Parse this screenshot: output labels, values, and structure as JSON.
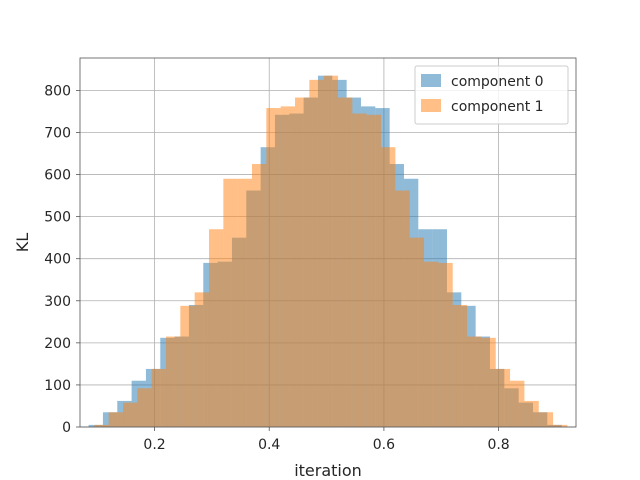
{
  "chart_data": {
    "type": "bar",
    "title": "",
    "xlabel": "iteration",
    "ylabel": "KL",
    "xlim": [
      0.07,
      0.935
    ],
    "ylim": [
      0,
      877
    ],
    "xticks": [
      0.2,
      0.4,
      0.6,
      0.8
    ],
    "yticks": [
      0,
      100,
      200,
      300,
      400,
      500,
      600,
      700,
      800
    ],
    "grid": true,
    "legend_position": "top-right",
    "series": [
      {
        "name": "component 0",
        "color": "#1f77b4",
        "opacity": 0.5,
        "bins": [
          {
            "x0": 0.085,
            "x1": 0.11,
            "v": 5
          },
          {
            "x0": 0.11,
            "x1": 0.135,
            "v": 35
          },
          {
            "x0": 0.135,
            "x1": 0.16,
            "v": 62
          },
          {
            "x0": 0.16,
            "x1": 0.185,
            "v": 110
          },
          {
            "x0": 0.185,
            "x1": 0.21,
            "v": 138
          },
          {
            "x0": 0.21,
            "x1": 0.235,
            "v": 212
          },
          {
            "x0": 0.235,
            "x1": 0.26,
            "v": 215
          },
          {
            "x0": 0.26,
            "x1": 0.285,
            "v": 290
          },
          {
            "x0": 0.285,
            "x1": 0.31,
            "v": 390
          },
          {
            "x0": 0.31,
            "x1": 0.335,
            "v": 393
          },
          {
            "x0": 0.335,
            "x1": 0.36,
            "v": 450
          },
          {
            "x0": 0.36,
            "x1": 0.385,
            "v": 562
          },
          {
            "x0": 0.385,
            "x1": 0.41,
            "v": 665
          },
          {
            "x0": 0.41,
            "x1": 0.435,
            "v": 742
          },
          {
            "x0": 0.435,
            "x1": 0.46,
            "v": 745
          },
          {
            "x0": 0.46,
            "x1": 0.485,
            "v": 783
          },
          {
            "x0": 0.485,
            "x1": 0.51,
            "v": 835
          },
          {
            "x0": 0.51,
            "x1": 0.535,
            "v": 825
          },
          {
            "x0": 0.535,
            "x1": 0.56,
            "v": 783
          },
          {
            "x0": 0.56,
            "x1": 0.585,
            "v": 762
          },
          {
            "x0": 0.585,
            "x1": 0.61,
            "v": 758
          },
          {
            "x0": 0.61,
            "x1": 0.635,
            "v": 625
          },
          {
            "x0": 0.635,
            "x1": 0.66,
            "v": 590
          },
          {
            "x0": 0.66,
            "x1": 0.685,
            "v": 470
          },
          {
            "x0": 0.685,
            "x1": 0.71,
            "v": 470
          },
          {
            "x0": 0.71,
            "x1": 0.735,
            "v": 320
          },
          {
            "x0": 0.735,
            "x1": 0.76,
            "v": 288
          },
          {
            "x0": 0.76,
            "x1": 0.785,
            "v": 215
          },
          {
            "x0": 0.785,
            "x1": 0.81,
            "v": 138
          },
          {
            "x0": 0.81,
            "x1": 0.835,
            "v": 92
          },
          {
            "x0": 0.835,
            "x1": 0.86,
            "v": 58
          },
          {
            "x0": 0.86,
            "x1": 0.885,
            "v": 35
          },
          {
            "x0": 0.885,
            "x1": 0.91,
            "v": 5
          }
        ]
      },
      {
        "name": "component 1",
        "color": "#ff7f0e",
        "opacity": 0.5,
        "bins": [
          {
            "x0": 0.095,
            "x1": 0.12,
            "v": 5
          },
          {
            "x0": 0.12,
            "x1": 0.145,
            "v": 35
          },
          {
            "x0": 0.145,
            "x1": 0.17,
            "v": 58
          },
          {
            "x0": 0.17,
            "x1": 0.195,
            "v": 92
          },
          {
            "x0": 0.195,
            "x1": 0.22,
            "v": 138
          },
          {
            "x0": 0.22,
            "x1": 0.245,
            "v": 215
          },
          {
            "x0": 0.245,
            "x1": 0.27,
            "v": 288
          },
          {
            "x0": 0.27,
            "x1": 0.295,
            "v": 320
          },
          {
            "x0": 0.295,
            "x1": 0.32,
            "v": 470
          },
          {
            "x0": 0.32,
            "x1": 0.345,
            "v": 590
          },
          {
            "x0": 0.345,
            "x1": 0.37,
            "v": 590
          },
          {
            "x0": 0.37,
            "x1": 0.395,
            "v": 625
          },
          {
            "x0": 0.395,
            "x1": 0.42,
            "v": 758
          },
          {
            "x0": 0.42,
            "x1": 0.445,
            "v": 762
          },
          {
            "x0": 0.445,
            "x1": 0.47,
            "v": 783
          },
          {
            "x0": 0.47,
            "x1": 0.495,
            "v": 825
          },
          {
            "x0": 0.495,
            "x1": 0.52,
            "v": 835
          },
          {
            "x0": 0.52,
            "x1": 0.545,
            "v": 783
          },
          {
            "x0": 0.545,
            "x1": 0.57,
            "v": 745
          },
          {
            "x0": 0.57,
            "x1": 0.595,
            "v": 742
          },
          {
            "x0": 0.595,
            "x1": 0.62,
            "v": 665
          },
          {
            "x0": 0.62,
            "x1": 0.645,
            "v": 562
          },
          {
            "x0": 0.645,
            "x1": 0.67,
            "v": 450
          },
          {
            "x0": 0.67,
            "x1": 0.695,
            "v": 393
          },
          {
            "x0": 0.695,
            "x1": 0.72,
            "v": 390
          },
          {
            "x0": 0.72,
            "x1": 0.745,
            "v": 290
          },
          {
            "x0": 0.745,
            "x1": 0.77,
            "v": 215
          },
          {
            "x0": 0.77,
            "x1": 0.795,
            "v": 212
          },
          {
            "x0": 0.795,
            "x1": 0.82,
            "v": 138
          },
          {
            "x0": 0.82,
            "x1": 0.845,
            "v": 110
          },
          {
            "x0": 0.845,
            "x1": 0.87,
            "v": 62
          },
          {
            "x0": 0.87,
            "x1": 0.895,
            "v": 35
          },
          {
            "x0": 0.895,
            "x1": 0.92,
            "v": 5
          }
        ]
      }
    ]
  }
}
